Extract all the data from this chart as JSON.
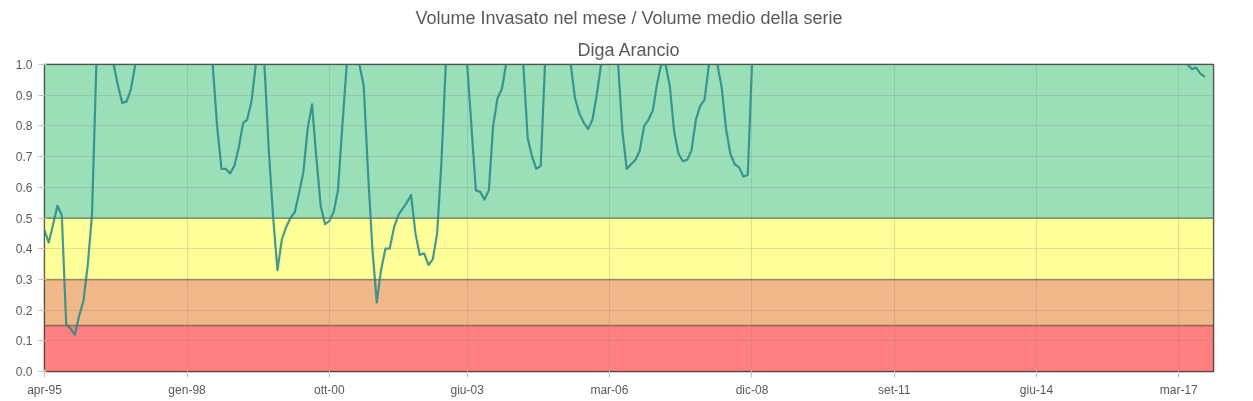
{
  "chart_data": {
    "type": "line",
    "title": "Volume Invasato nel mese / Volume medio della serie",
    "subtitle": "Diga Arancio",
    "xlim": [
      "1995-04",
      "2017-11"
    ],
    "xticks": [
      {
        "value": "1995-04",
        "label": "apr-95"
      },
      {
        "value": "1998-01",
        "label": "gen-98"
      },
      {
        "value": "2000-10",
        "label": "ott-00"
      },
      {
        "value": "2003-06",
        "label": "giu-03"
      },
      {
        "value": "2006-03",
        "label": "mar-06"
      },
      {
        "value": "2008-12",
        "label": "dic-08"
      },
      {
        "value": "2011-09",
        "label": "set-11"
      },
      {
        "value": "2014-06",
        "label": "giu-14"
      },
      {
        "value": "2017-03",
        "label": "mar-17"
      }
    ],
    "ylim": [
      0,
      1
    ],
    "yticks": [
      {
        "value": 0,
        "label": "0.0"
      },
      0.1,
      0.2,
      0.3,
      0.4,
      0.5,
      0.6,
      0.7,
      0.8,
      0.9,
      {
        "value": 1,
        "label": "1.0"
      }
    ],
    "grid": true,
    "marker": "none",
    "line_style": "solid",
    "bands": [
      {
        "axis": "y",
        "from": 0,
        "to": 0.15,
        "color": "#ff8080"
      },
      {
        "axis": "y",
        "from": 0.15,
        "to": 0.3,
        "color": "#f0b888"
      },
      {
        "axis": "y",
        "from": 0.3,
        "to": 0.5,
        "color": "#ffff99"
      },
      {
        "axis": "y",
        "from": 0.5,
        "to": 1,
        "color": "#9adfb8"
      }
    ],
    "series": [
      {
        "color": "#24888a",
        "x": [
          "1995-04",
          "1995-05",
          "1995-06",
          "1995-07",
          "1995-08",
          "1995-09",
          "1995-10",
          "1995-11",
          "1995-12",
          "1996-01",
          "1996-02",
          "1996-03",
          "1996-04",
          "1996-05",
          "1996-08",
          "1996-09",
          "1996-10",
          "1996-11",
          "1996-12",
          "1997-01",
          "1997-02",
          "1998-07",
          "1998-08",
          "1998-09",
          "1998-10",
          "1998-11",
          "1998-12",
          "1999-01",
          "1999-02",
          "1999-03",
          "1999-04",
          "1999-05",
          "1999-06",
          "1999-07",
          "1999-08",
          "1999-09",
          "1999-10",
          "1999-11",
          "1999-12",
          "2000-01",
          "2000-02",
          "2000-03",
          "2000-04",
          "2000-05",
          "2000-06",
          "2000-07",
          "2000-08",
          "2000-09",
          "2000-10",
          "2000-11",
          "2000-12",
          "2001-01",
          "2001-02",
          "2001-03",
          "2001-05",
          "2001-06",
          "2001-07",
          "2001-08",
          "2001-09",
          "2001-10",
          "2001-11",
          "2001-12",
          "2002-01",
          "2002-02",
          "2002-03",
          "2002-04",
          "2002-05",
          "2002-06",
          "2002-07",
          "2002-08",
          "2002-09",
          "2002-10",
          "2002-11",
          "2002-12",
          "2003-01",
          "2003-02",
          "2003-06",
          "2003-07",
          "2003-08",
          "2003-09",
          "2003-10",
          "2003-11",
          "2003-12",
          "2004-01",
          "2004-02",
          "2004-03",
          "2004-04",
          "2004-07",
          "2004-08",
          "2004-09",
          "2004-10",
          "2004-11",
          "2004-12",
          "2005-01",
          "2005-06",
          "2005-07",
          "2005-08",
          "2005-09",
          "2005-10",
          "2005-11",
          "2005-12",
          "2006-01",
          "2006-02",
          "2006-05",
          "2006-06",
          "2006-07",
          "2006-08",
          "2006-09",
          "2006-10",
          "2006-11",
          "2006-12",
          "2007-01",
          "2007-02",
          "2007-03",
          "2007-04",
          "2007-05",
          "2007-06",
          "2007-07",
          "2007-08",
          "2007-09",
          "2007-10",
          "2007-11",
          "2007-12",
          "2008-01",
          "2008-02",
          "2008-03",
          "2008-04",
          "2008-05",
          "2008-06",
          "2008-07",
          "2008-08",
          "2008-09",
          "2008-10",
          "2008-11",
          "2008-12",
          "2009-01",
          "2017-05",
          "2017-06",
          "2017-07",
          "2017-08",
          "2017-09"
        ],
        "values": [
          0.46,
          0.42,
          0.48,
          0.54,
          0.51,
          0.155,
          0.14,
          0.12,
          0.18,
          0.23,
          0.35,
          0.51,
          1.0,
          null,
          1.0,
          0.93,
          0.875,
          0.88,
          0.92,
          1.0,
          null,
          1.0,
          0.8,
          0.66,
          0.66,
          0.645,
          0.67,
          0.73,
          0.81,
          0.82,
          0.88,
          1.0,
          null,
          1.0,
          0.72,
          0.5,
          0.33,
          0.43,
          0.47,
          0.5,
          0.52,
          0.58,
          0.65,
          0.79,
          0.87,
          0.7,
          0.54,
          0.48,
          0.49,
          0.52,
          0.59,
          0.8,
          1.0,
          null,
          1.0,
          0.93,
          0.65,
          0.4,
          0.225,
          0.33,
          0.4,
          0.4,
          0.47,
          0.51,
          0.53,
          0.55,
          0.575,
          0.45,
          0.38,
          0.385,
          0.347,
          0.365,
          0.45,
          0.68,
          1.0,
          null,
          1.0,
          0.8,
          0.59,
          0.585,
          0.56,
          0.59,
          0.8,
          0.89,
          0.92,
          1.0,
          null,
          1.0,
          0.76,
          0.7,
          0.66,
          0.67,
          1.0,
          null,
          1.0,
          0.89,
          0.84,
          0.81,
          0.79,
          0.82,
          0.9,
          1.0,
          null,
          1.0,
          0.78,
          0.66,
          0.675,
          0.69,
          0.72,
          0.8,
          0.82,
          0.85,
          0.94,
          1.0,
          1.0,
          0.93,
          0.78,
          0.71,
          0.685,
          0.69,
          0.72,
          0.82,
          0.865,
          0.885,
          1.0,
          null,
          1.0,
          0.925,
          0.79,
          0.71,
          0.675,
          0.665,
          0.635,
          0.64,
          1.0,
          null,
          1.0,
          0.985,
          0.99,
          0.97,
          0.96
        ]
      }
    ]
  }
}
